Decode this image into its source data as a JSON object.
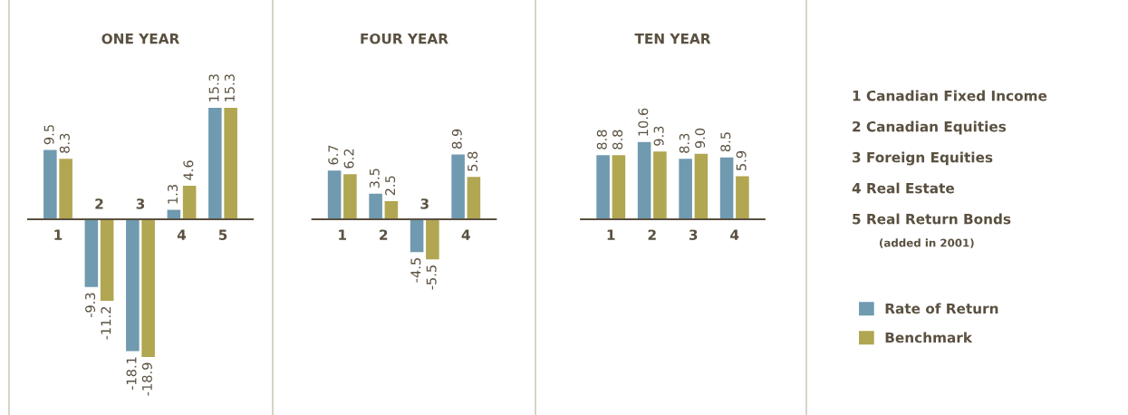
{
  "chart_data": [
    {
      "type": "bar",
      "title": "ONE YEAR",
      "categories": [
        "1",
        "2",
        "3",
        "4",
        "5"
      ],
      "series": [
        {
          "color": "#6f9ab0",
          "values": [
            9.5,
            -9.3,
            -18.1,
            1.3,
            15.3
          ],
          "value_labels": [
            "9.5",
            "-9.3",
            "-18.1",
            "1.3",
            "15.3"
          ]
        },
        {
          "color": "#b1a651",
          "values": [
            8.3,
            -11.2,
            -18.9,
            4.6,
            15.3
          ],
          "value_labels": [
            "8.3",
            "-11.2",
            "-18.9",
            "4.6",
            "15.3"
          ]
        }
      ]
    },
    {
      "type": "bar",
      "title": "FOUR YEAR",
      "categories": [
        "1",
        "2",
        "3",
        "4"
      ],
      "series": [
        {
          "color": "#6f9ab0",
          "values": [
            6.7,
            3.5,
            -4.5,
            8.9
          ],
          "value_labels": [
            "6.7",
            "3.5",
            "-4.5",
            "8.9"
          ]
        },
        {
          "color": "#b1a651",
          "values": [
            6.2,
            2.5,
            -5.5,
            5.8
          ],
          "value_labels": [
            "6.2",
            "2.5",
            "-5.5",
            "5.8"
          ]
        }
      ]
    },
    {
      "type": "bar",
      "title": "TEN YEAR",
      "categories": [
        "1",
        "2",
        "3",
        "4"
      ],
      "legend": "right",
      "series": [
        {
          "name": "Rate of Return",
          "color": "#6f9ab0",
          "values": [
            8.8,
            10.6,
            8.3,
            8.5
          ],
          "value_labels": [
            "8.8",
            "10.6",
            "8.3",
            "8.5"
          ]
        },
        {
          "name": "Benchmark",
          "color": "#b1a651",
          "values": [
            8.8,
            9.3,
            9.0,
            5.9
          ],
          "value_labels": [
            "8.8",
            "9.3",
            "9.0",
            "5.9"
          ]
        }
      ]
    },
    {
      "type": "other",
      "annotations": [
        "1 Canadian Fixed Income",
        "2 Canadian Equities",
        "3 Foreign Equities",
        "4 Real Estate",
        "5 Real Return Bonds",
        "(added in 2001)"
      ]
    }
  ]
}
